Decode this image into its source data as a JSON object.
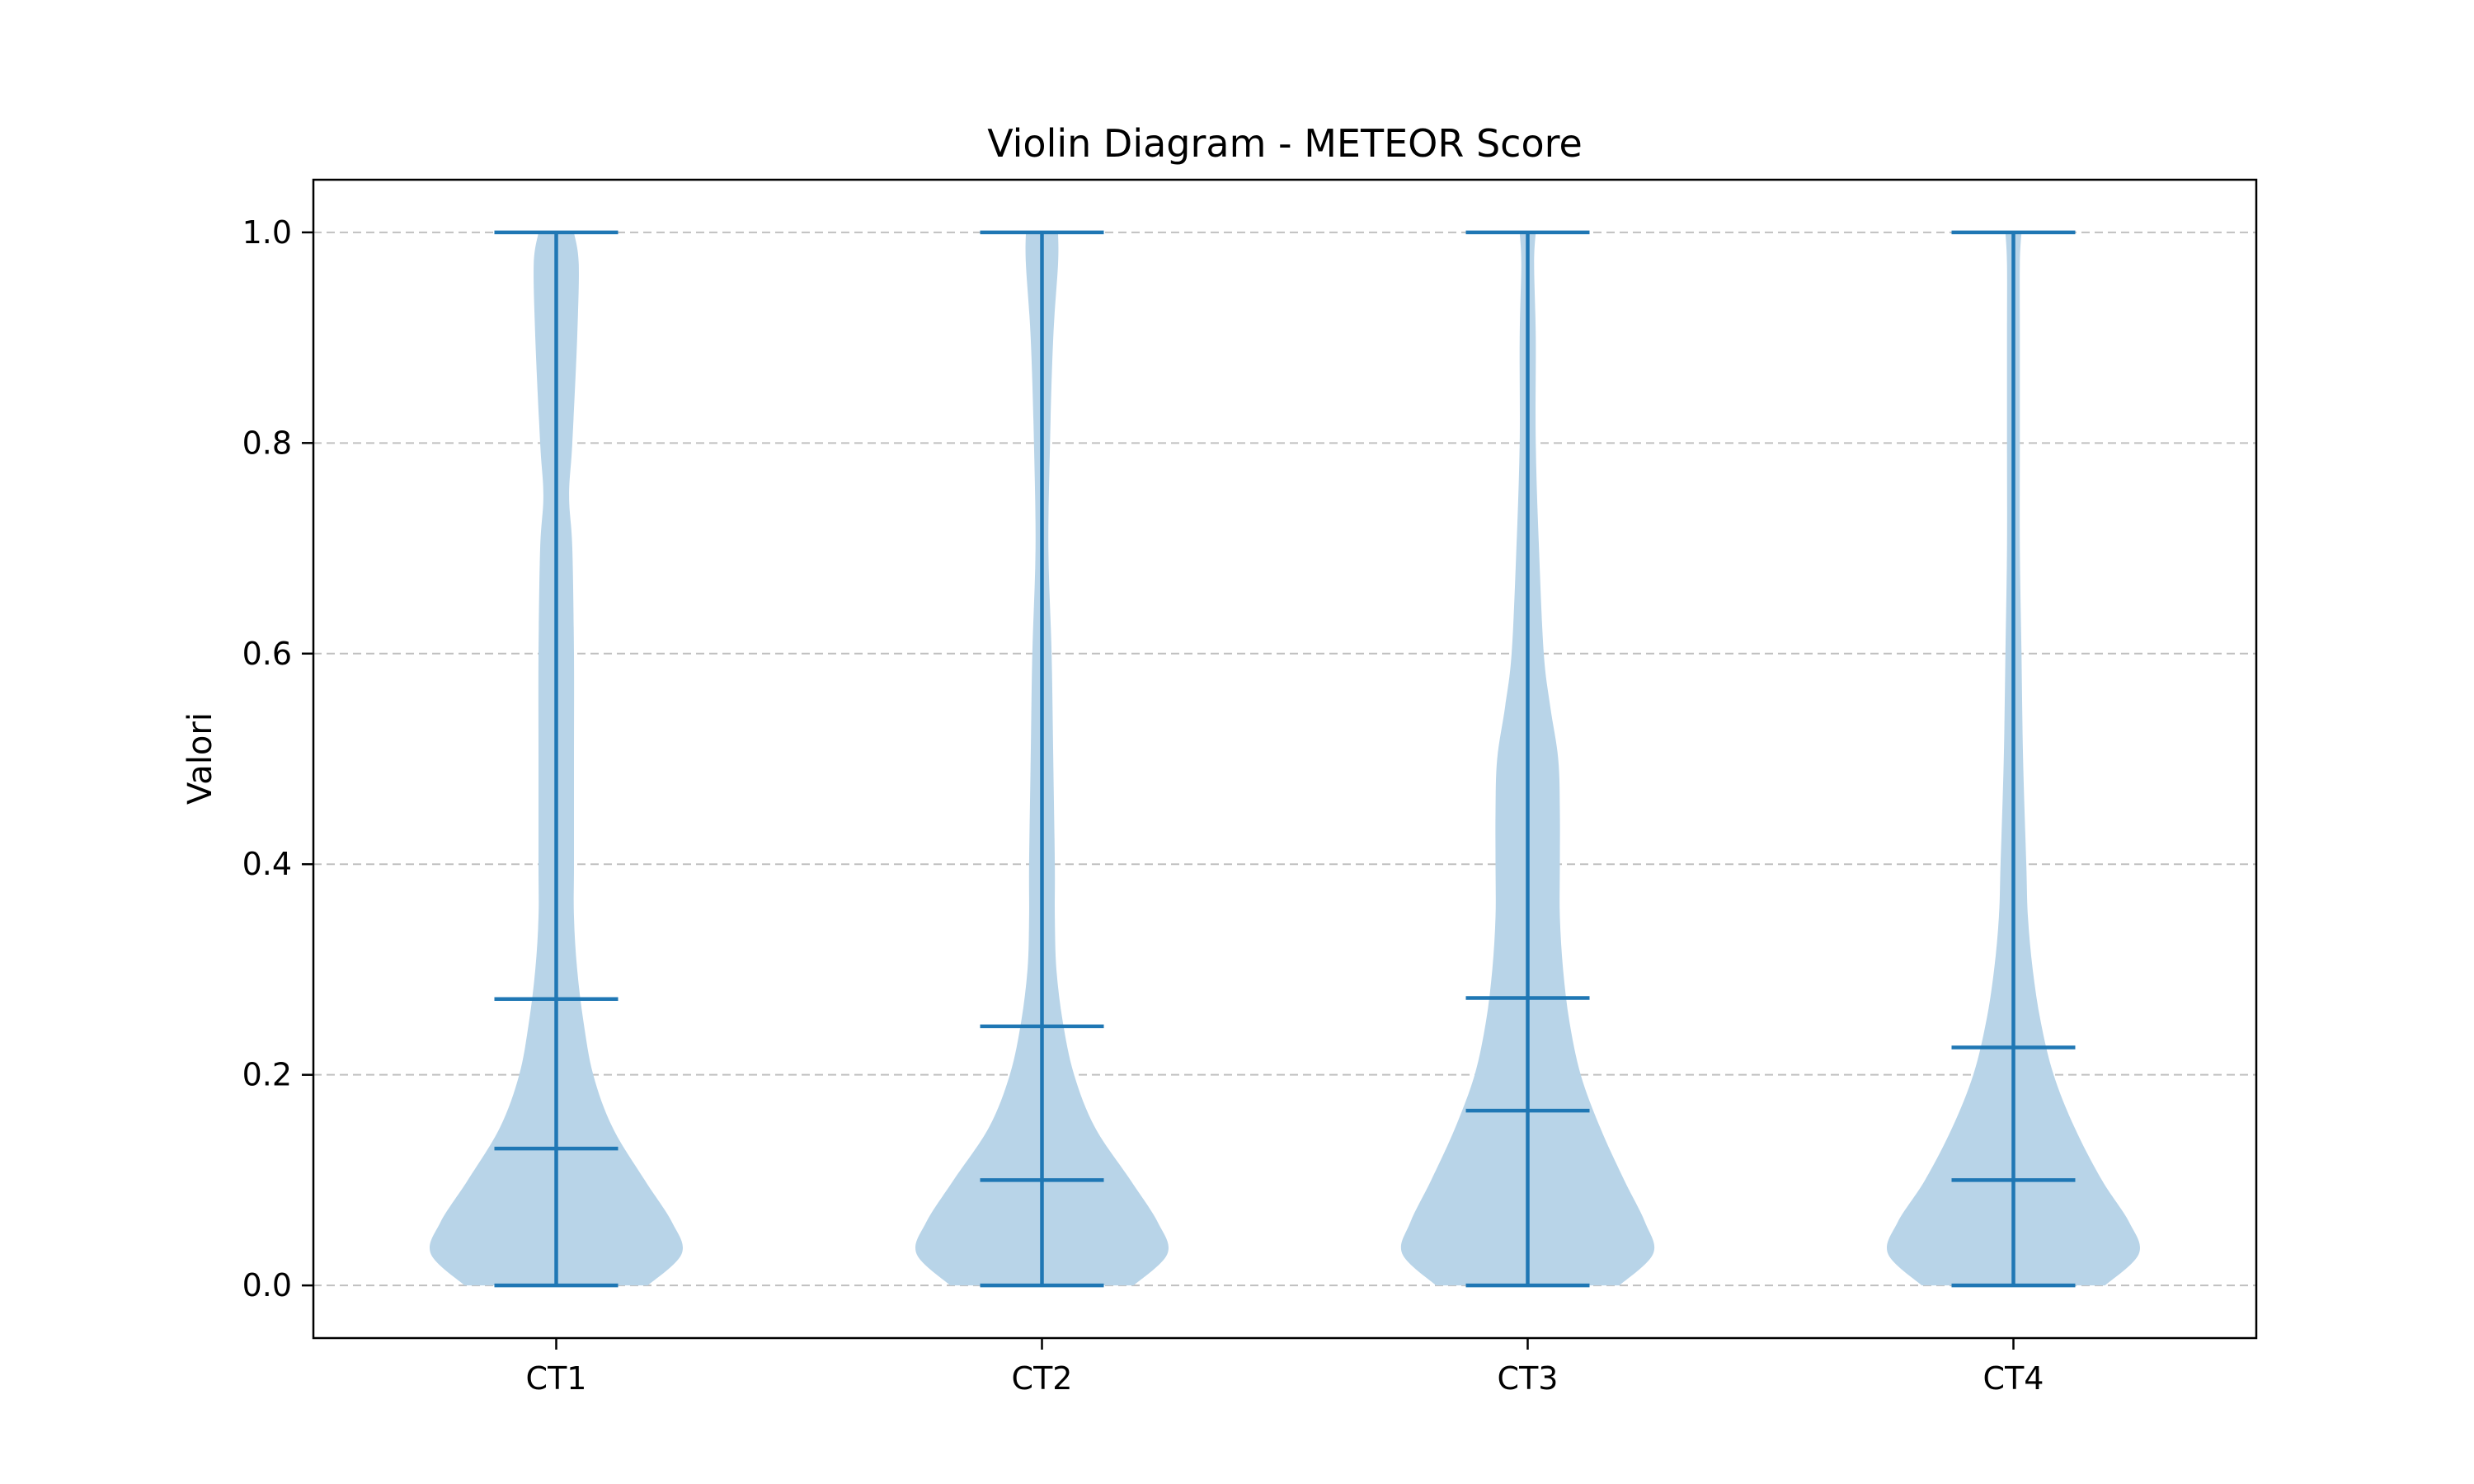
{
  "chart_data": {
    "type": "violin",
    "title": "Violin Diagram - METEOR Score",
    "xlabel": "",
    "ylabel": "Valori",
    "ylim": [
      -0.05,
      1.05
    ],
    "yticks": [
      "0.0",
      "0.2",
      "0.4",
      "0.6",
      "0.8",
      "1.0"
    ],
    "ytick_values": [
      0.0,
      0.2,
      0.4,
      0.6,
      0.8,
      1.0
    ],
    "grid": "horizontal dashed",
    "colors": {
      "body": "#b8d4e8",
      "lines": "#1f77b4",
      "grid": "#c0c0c0"
    },
    "categories": [
      "CT1",
      "CT2",
      "CT3",
      "CT4"
    ],
    "violins": [
      {
        "label": "CT1",
        "min": 0.0,
        "max": 1.0,
        "median": 0.13,
        "q3": 0.272,
        "density": [
          [
            0.0,
            0.57
          ],
          [
            0.03,
            0.78
          ],
          [
            0.06,
            0.72
          ],
          [
            0.1,
            0.55
          ],
          [
            0.15,
            0.35
          ],
          [
            0.2,
            0.23
          ],
          [
            0.25,
            0.17
          ],
          [
            0.3,
            0.13
          ],
          [
            0.35,
            0.11
          ],
          [
            0.4,
            0.11
          ],
          [
            0.5,
            0.11
          ],
          [
            0.6,
            0.11
          ],
          [
            0.7,
            0.1
          ],
          [
            0.75,
            0.08
          ],
          [
            0.8,
            0.1
          ],
          [
            0.9,
            0.13
          ],
          [
            0.97,
            0.14
          ],
          [
            1.0,
            0.11
          ]
        ]
      },
      {
        "label": "CT2",
        "min": 0.0,
        "max": 1.0,
        "median": 0.1,
        "q3": 0.246,
        "density": [
          [
            0.0,
            0.57
          ],
          [
            0.03,
            0.78
          ],
          [
            0.06,
            0.72
          ],
          [
            0.1,
            0.55
          ],
          [
            0.15,
            0.33
          ],
          [
            0.2,
            0.2
          ],
          [
            0.25,
            0.13
          ],
          [
            0.3,
            0.09
          ],
          [
            0.35,
            0.08
          ],
          [
            0.4,
            0.08
          ],
          [
            0.5,
            0.07
          ],
          [
            0.6,
            0.06
          ],
          [
            0.7,
            0.04
          ],
          [
            0.8,
            0.05
          ],
          [
            0.9,
            0.07
          ],
          [
            0.97,
            0.1
          ],
          [
            1.0,
            0.1
          ]
        ]
      },
      {
        "label": "CT3",
        "min": 0.0,
        "max": 1.0,
        "median": 0.166,
        "q3": 0.273,
        "density": [
          [
            0.0,
            0.57
          ],
          [
            0.03,
            0.78
          ],
          [
            0.06,
            0.73
          ],
          [
            0.1,
            0.6
          ],
          [
            0.15,
            0.45
          ],
          [
            0.2,
            0.33
          ],
          [
            0.25,
            0.26
          ],
          [
            0.3,
            0.22
          ],
          [
            0.35,
            0.2
          ],
          [
            0.4,
            0.2
          ],
          [
            0.45,
            0.2
          ],
          [
            0.5,
            0.19
          ],
          [
            0.55,
            0.14
          ],
          [
            0.6,
            0.1
          ],
          [
            0.7,
            0.07
          ],
          [
            0.8,
            0.05
          ],
          [
            0.9,
            0.05
          ],
          [
            0.97,
            0.04
          ],
          [
            1.0,
            0.05
          ]
        ]
      },
      {
        "label": "CT4",
        "min": 0.0,
        "max": 1.0,
        "median": 0.1,
        "q3": 0.226,
        "density": [
          [
            0.0,
            0.57
          ],
          [
            0.03,
            0.78
          ],
          [
            0.06,
            0.72
          ],
          [
            0.1,
            0.55
          ],
          [
            0.15,
            0.38
          ],
          [
            0.2,
            0.25
          ],
          [
            0.25,
            0.17
          ],
          [
            0.3,
            0.12
          ],
          [
            0.35,
            0.09
          ],
          [
            0.4,
            0.08
          ],
          [
            0.5,
            0.06
          ],
          [
            0.6,
            0.05
          ],
          [
            0.7,
            0.04
          ],
          [
            0.8,
            0.04
          ],
          [
            0.9,
            0.04
          ],
          [
            0.97,
            0.04
          ],
          [
            1.0,
            0.05
          ]
        ]
      }
    ]
  }
}
